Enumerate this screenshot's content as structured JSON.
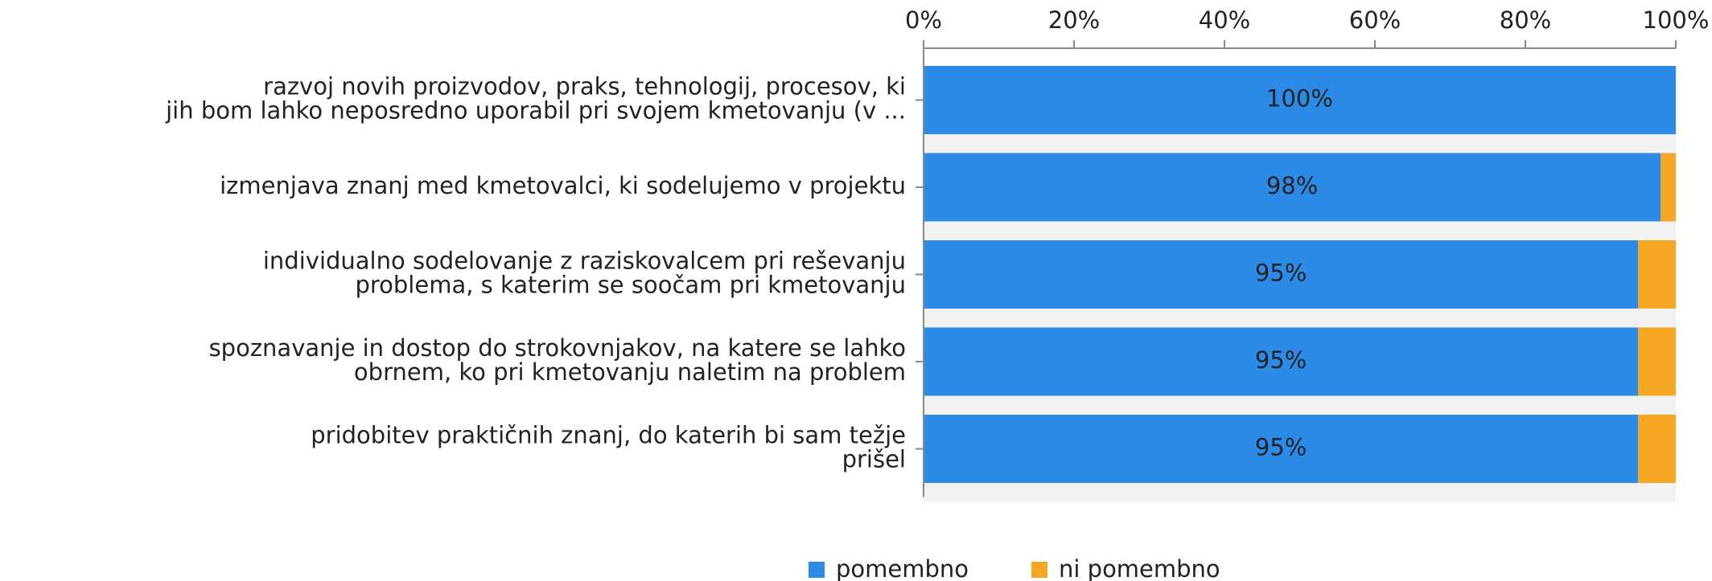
{
  "chart_data": {
    "type": "stacked_barh",
    "categories": [
      "razvoj novih proizvodov, praks, tehnologij, procesov, ki\njih bom lahko neposredno uporabil pri svojem kmetovanju (v ...",
      "izmenjava znanj med kmetovalci, ki sodelujemo v projektu",
      "individualno sodelovanje z raziskovalcem pri reševanju\nproblema, s katerim se soočam pri kmetovanju",
      "spoznavanje in dostop do strokovnjakov, na katere se lahko\nobrnem, ko pri kmetovanju naletim na problem",
      "pridobitev praktičnih znanj, do katerih bi sam težje\nprišel"
    ],
    "series": [
      {
        "name": "pomembno",
        "color": "#2b8be6",
        "values": [
          100,
          98,
          95,
          95,
          95
        ],
        "value_labels": [
          "100%",
          "98%",
          "95%",
          "95%",
          "95%"
        ]
      },
      {
        "name": "ni pomembno",
        "color": "#f5a623",
        "values": [
          0,
          2,
          5,
          5,
          5
        ]
      }
    ],
    "xlim": [
      0,
      100
    ],
    "xticks": [
      {
        "value": 0,
        "label": "0%"
      },
      {
        "value": 20,
        "label": "20%"
      },
      {
        "value": 40,
        "label": "40%"
      },
      {
        "value": 60,
        "label": "60%"
      },
      {
        "value": 80,
        "label": "80%"
      },
      {
        "value": 100,
        "label": "100%"
      }
    ],
    "legend": "bottom"
  }
}
